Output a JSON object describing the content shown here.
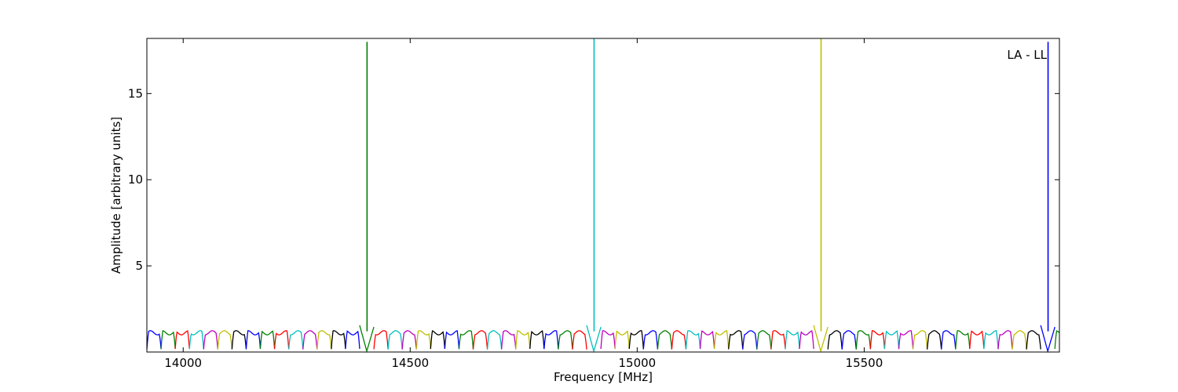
{
  "chart_data": {
    "type": "line",
    "title": "",
    "annotation": "LA - LL",
    "xlabel": "Frequency [MHz]",
    "ylabel": "Amplitude [arbitrary units]",
    "xlim": [
      13920,
      15930
    ],
    "ylim": [
      0,
      18.2
    ],
    "x_ticks": [
      14000,
      14500,
      15000,
      15500
    ],
    "y_ticks": [
      5,
      10,
      15
    ],
    "grid": false,
    "legend": "none",
    "channel_width_mhz": 31.25,
    "channel_start_mhz": 13920,
    "channel_colors": [
      "#0000ff",
      "#008000",
      "#ff0000",
      "#00bfbf",
      "#bf00bf",
      "#bfbf00",
      "#000000"
    ],
    "typical_level": 1.2,
    "spikes": [
      {
        "x": 14405,
        "y": 18.0,
        "color": "#008000"
      },
      {
        "x": 14905,
        "y": 18.2,
        "color": "#00bfbf"
      },
      {
        "x": 15405,
        "y": 18.2,
        "color": "#bfbf00"
      },
      {
        "x": 15905,
        "y": 18.0,
        "color": "#0000ff"
      }
    ]
  }
}
